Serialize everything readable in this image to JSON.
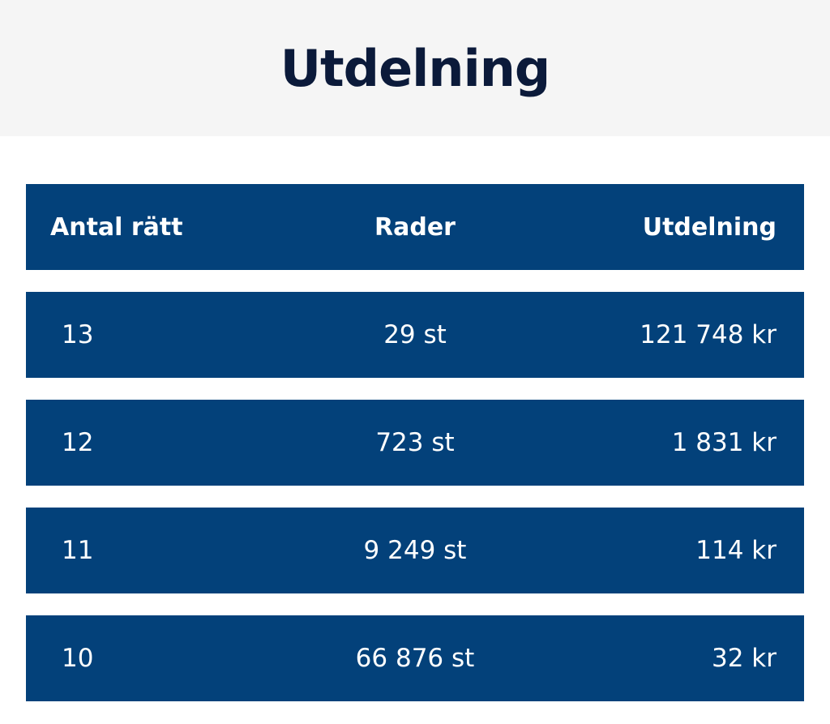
{
  "header": {
    "title": "Utdelning"
  },
  "table": {
    "columns": [
      "Antal rätt",
      "Rader",
      "Utdelning"
    ],
    "rows": [
      [
        "13",
        "29 st",
        "121 748 kr"
      ],
      [
        "12",
        "723 st",
        "1 831 kr"
      ],
      [
        "11",
        "9 249 st",
        "114 kr"
      ],
      [
        "10",
        "66 876 st",
        "32 kr"
      ]
    ]
  }
}
